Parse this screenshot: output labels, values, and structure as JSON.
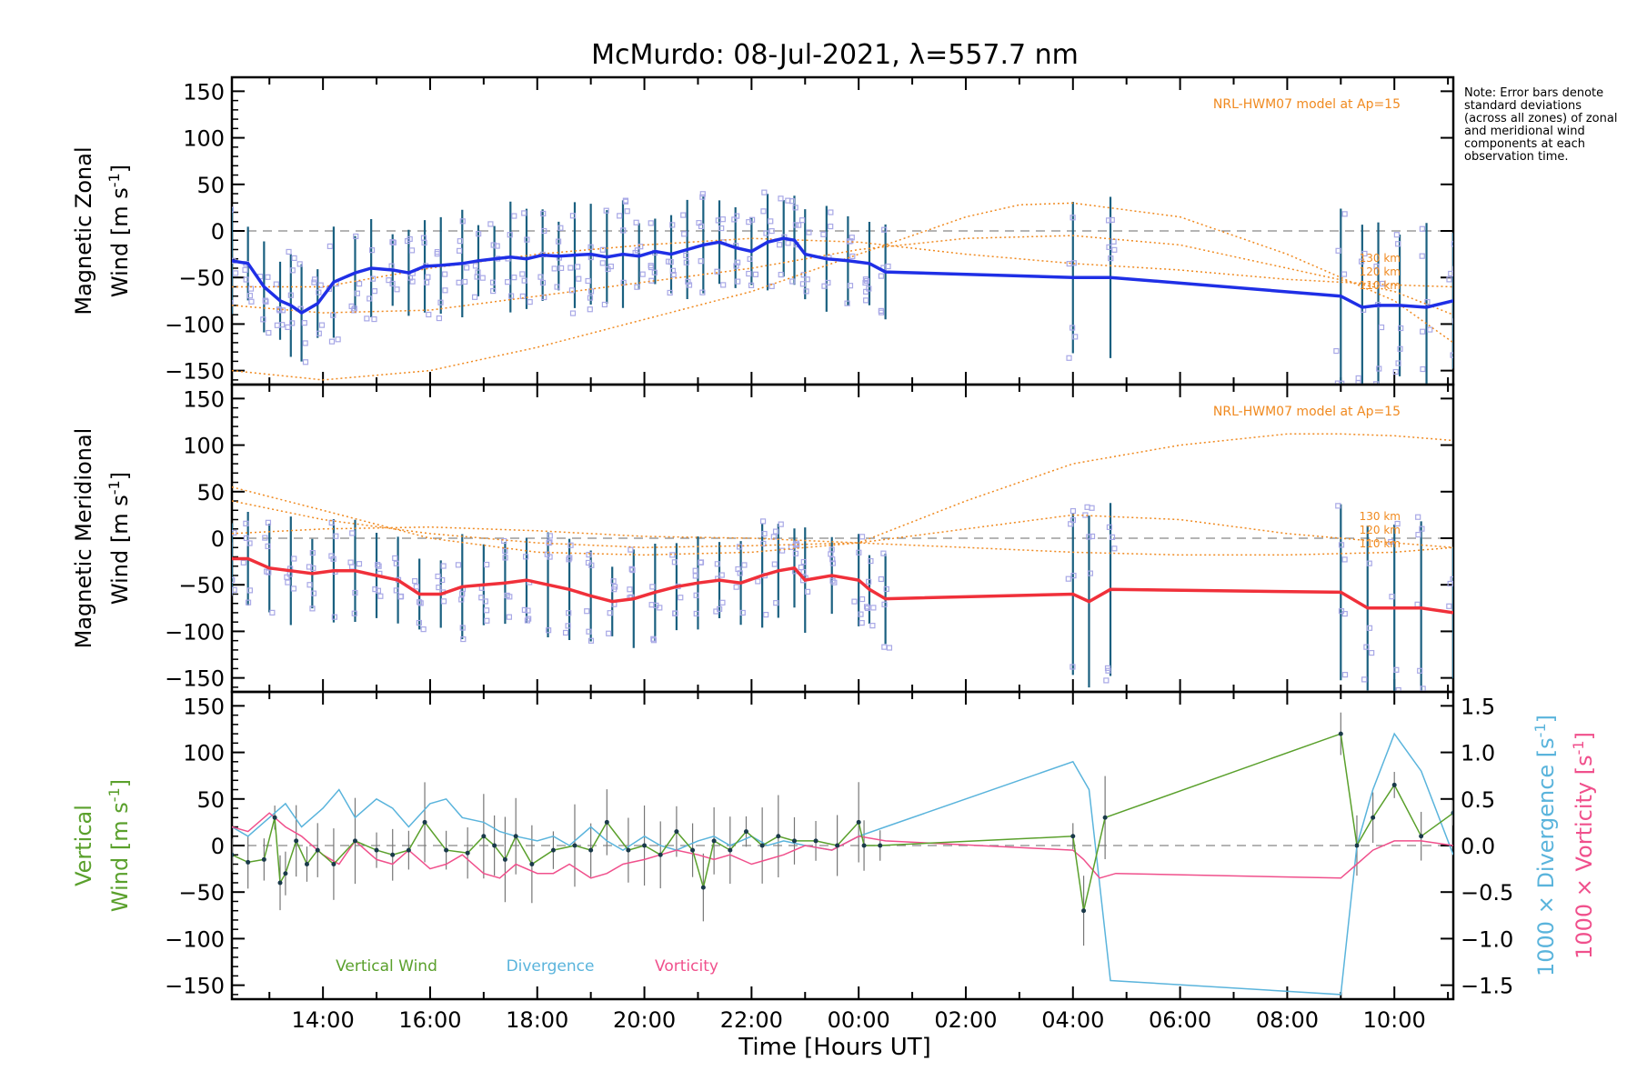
{
  "figure": {
    "title": "McMurdo: 08-Jul-2021, λ=557.7 nm",
    "note": "Note: Error bars denote standard deviations (across all zones) of zonal and meridional wind components at each observation time.",
    "xlabel": "Time [Hours UT]",
    "x_tick_labels": [
      "14:00",
      "16:00",
      "18:00",
      "20:00",
      "22:00",
      "00:00",
      "02:00",
      "04:00",
      "06:00",
      "08:00",
      "10:00"
    ],
    "colors": {
      "zonal": "#1f2fe6",
      "meridional": "#f0303a",
      "vertical": "#5aa02c",
      "divergence": "#5ab4dc",
      "vorticity": "#f0508c",
      "model": "#f08a20",
      "zones": "#a8a8e6",
      "errbar": "#1a6080"
    }
  },
  "chart_data": [
    {
      "type": "line",
      "panel": "zonal",
      "ylabel_line1": "Magnetic Zonal",
      "ylabel_line2": "Wind [m s",
      "ylabel_sup": "-1",
      "ylabel_end": "]",
      "xlim_hours": [
        12.3,
        35.1
      ],
      "ylim": [
        -165,
        165
      ],
      "y_ticks": [
        150,
        100,
        50,
        0,
        -50,
        -100,
        -150
      ],
      "y_tick_labels": [
        "150",
        "100",
        "50",
        "0",
        "−50",
        "−100",
        "−150"
      ],
      "model_label": "NRL-HWM07 model at Ap=15",
      "model_alt_labels": [
        "130 km",
        "120 km",
        "110 km"
      ],
      "series": [
        {
          "name": "Zonal wind",
          "x": [
            12.3,
            12.6,
            12.9,
            13.2,
            13.4,
            13.6,
            13.9,
            14.2,
            14.6,
            14.9,
            15.3,
            15.6,
            15.9,
            16.2,
            16.6,
            16.9,
            17.2,
            17.5,
            17.8,
            18.1,
            18.4,
            18.7,
            19.0,
            19.3,
            19.6,
            19.9,
            20.2,
            20.5,
            20.8,
            21.1,
            21.4,
            21.7,
            22.0,
            22.3,
            22.6,
            22.8,
            23.0,
            23.4,
            23.8,
            24.2,
            24.5,
            28.0,
            28.7,
            33.0,
            33.4,
            33.7,
            34.1,
            34.6,
            35.1
          ],
          "y": [
            -32,
            -35,
            -60,
            -75,
            -80,
            -88,
            -78,
            -55,
            -45,
            -40,
            -42,
            -45,
            -38,
            -37,
            -35,
            -32,
            -30,
            -28,
            -30,
            -26,
            -27,
            -26,
            -25,
            -28,
            -25,
            -27,
            -22,
            -25,
            -20,
            -15,
            -12,
            -18,
            -22,
            -12,
            -8,
            -10,
            -25,
            -30,
            -32,
            -35,
            -44,
            -50,
            -50,
            -70,
            -82,
            -80,
            -80,
            -82,
            -75
          ]
        },
        {
          "name": "Model 130 km",
          "x": [
            12.3,
            14.0,
            16.0,
            18.0,
            20.0,
            22.0,
            24.0,
            26.0,
            27.0,
            28.0,
            30.0,
            32.0,
            34.0,
            35.1
          ],
          "y": [
            -150,
            -160,
            -150,
            -125,
            -95,
            -65,
            -25,
            15,
            28,
            30,
            15,
            -25,
            -75,
            -120
          ]
        },
        {
          "name": "Model 120 km",
          "x": [
            12.3,
            14.0,
            16.0,
            18.0,
            20.0,
            22.0,
            24.0,
            26.0,
            28.0,
            30.0,
            32.0,
            34.0,
            35.1
          ],
          "y": [
            -80,
            -88,
            -85,
            -70,
            -55,
            -40,
            -20,
            -8,
            -5,
            -15,
            -40,
            -65,
            -90
          ]
        },
        {
          "name": "Model 110 km",
          "x": [
            12.3,
            14.0,
            16.0,
            18.0,
            20.0,
            22.0,
            24.0,
            26.0,
            28.0,
            30.0,
            32.0,
            34.0,
            35.1
          ],
          "y": [
            -60,
            -60,
            -40,
            -25,
            -15,
            -8,
            -12,
            -25,
            -35,
            -42,
            -52,
            -58,
            -60
          ]
        }
      ]
    },
    {
      "type": "line",
      "panel": "meridional",
      "ylabel_line1": "Magnetic Meridional",
      "ylabel_line2": "Wind [m s",
      "ylabel_sup": "-1",
      "ylabel_end": "]",
      "xlim_hours": [
        12.3,
        35.1
      ],
      "ylim": [
        -165,
        165
      ],
      "y_ticks": [
        150,
        100,
        50,
        0,
        -50,
        -100,
        -150
      ],
      "y_tick_labels": [
        "150",
        "100",
        "50",
        "0",
        "−50",
        "−100",
        "−150"
      ],
      "model_label": "NRL-HWM07 model at Ap=15",
      "model_alt_labels": [
        "130 km",
        "120 km",
        "110 km"
      ],
      "series": [
        {
          "name": "Meridional wind",
          "x": [
            12.3,
            12.6,
            13.0,
            13.4,
            13.8,
            14.2,
            14.6,
            15.0,
            15.4,
            15.8,
            16.2,
            16.6,
            17.0,
            17.4,
            17.8,
            18.2,
            18.6,
            19.0,
            19.4,
            19.8,
            20.2,
            20.6,
            21.0,
            21.4,
            21.8,
            22.2,
            22.5,
            22.8,
            23.0,
            23.5,
            24.0,
            24.2,
            24.5,
            28.0,
            28.3,
            28.7,
            33.0,
            33.5,
            34.0,
            34.5,
            35.1
          ],
          "y": [
            -22,
            -22,
            -32,
            -35,
            -38,
            -35,
            -35,
            -40,
            -45,
            -60,
            -60,
            -52,
            -50,
            -48,
            -45,
            -50,
            -55,
            -62,
            -68,
            -65,
            -58,
            -52,
            -48,
            -45,
            -48,
            -40,
            -35,
            -32,
            -45,
            -40,
            -45,
            -55,
            -65,
            -60,
            -68,
            -55,
            -58,
            -75,
            -75,
            -75,
            -80
          ]
        },
        {
          "name": "Model 130 km",
          "x": [
            12.3,
            14.0,
            16.0,
            18.0,
            20.0,
            22.0,
            24.0,
            26.0,
            28.0,
            30.0,
            32.0,
            33.0,
            34.0,
            35.1
          ],
          "y": [
            55,
            30,
            0,
            -15,
            -18,
            -15,
            -5,
            40,
            80,
            100,
            112,
            112,
            110,
            105
          ]
        },
        {
          "name": "Model 120 km",
          "x": [
            12.3,
            14.0,
            16.0,
            18.0,
            20.0,
            22.0,
            24.0,
            26.0,
            28.0,
            30.0,
            32.0,
            34.0,
            35.1
          ],
          "y": [
            40,
            20,
            5,
            -5,
            -10,
            -8,
            -5,
            10,
            25,
            20,
            5,
            -5,
            -10
          ]
        },
        {
          "name": "Model 110 km",
          "x": [
            12.3,
            14.0,
            16.0,
            18.0,
            20.0,
            22.0,
            24.0,
            26.0,
            28.0,
            30.0,
            32.0,
            34.0,
            35.1
          ],
          "y": [
            5,
            10,
            12,
            8,
            2,
            0,
            -5,
            -10,
            -15,
            -18,
            -18,
            -15,
            -10
          ]
        }
      ]
    },
    {
      "type": "line",
      "panel": "vertical",
      "ylabel_line1": "Vertical",
      "ylabel_line2": "Wind [m s",
      "ylabel_sup": "-1",
      "ylabel_end": "]",
      "right_ylabel_a": "1000 × Divergence [s",
      "right_ylabel_b": "1000 × Vorticity [s",
      "right_ylabel_sup": "-1",
      "right_ylabel_end": "]",
      "xlim_hours": [
        12.3,
        35.1
      ],
      "ylim": [
        -165,
        165
      ],
      "y_ticks": [
        150,
        100,
        50,
        0,
        -50,
        -100,
        -150
      ],
      "y_tick_labels": [
        "150",
        "100",
        "50",
        "0",
        "−50",
        "−100",
        "−150"
      ],
      "ylim_right": [
        -1.65,
        1.65
      ],
      "y2_ticks": [
        1.5,
        1.0,
        0.5,
        0.0,
        -0.5,
        -1.0,
        -1.5
      ],
      "y2_tick_labels": [
        "1.5",
        "1.0",
        "0.5",
        "0.0",
        "−0.5",
        "−1.0",
        "−1.5"
      ],
      "legend": [
        "Vertical Wind",
        "Divergence",
        "Vorticity"
      ],
      "series": [
        {
          "name": "Vertical Wind",
          "x": [
            12.3,
            12.6,
            12.9,
            13.1,
            13.2,
            13.3,
            13.5,
            13.7,
            13.9,
            14.2,
            14.6,
            15.0,
            15.3,
            15.6,
            15.9,
            16.3,
            16.7,
            17.0,
            17.2,
            17.4,
            17.6,
            17.9,
            18.3,
            18.7,
            19.0,
            19.3,
            19.7,
            20.0,
            20.3,
            20.6,
            20.9,
            21.1,
            21.3,
            21.6,
            21.9,
            22.2,
            22.5,
            22.8,
            23.2,
            23.6,
            24.0,
            24.1,
            24.4,
            28.0,
            28.2,
            28.6,
            33.0,
            33.3,
            33.6,
            34.0,
            34.5,
            35.1
          ],
          "y": [
            -10,
            -18,
            -15,
            30,
            -40,
            -30,
            5,
            -20,
            -5,
            -20,
            5,
            -5,
            -10,
            -5,
            25,
            -5,
            -8,
            10,
            0,
            -15,
            10,
            -20,
            -5,
            0,
            -5,
            25,
            -5,
            0,
            -10,
            15,
            -5,
            -45,
            5,
            -5,
            15,
            0,
            10,
            5,
            5,
            0,
            25,
            0,
            0,
            10,
            -70,
            30,
            120,
            0,
            30,
            65,
            10,
            35
          ]
        },
        {
          "name": "Divergence",
          "x": [
            12.3,
            12.6,
            13.0,
            13.3,
            13.6,
            14.0,
            14.3,
            14.6,
            15.0,
            15.3,
            15.6,
            16.0,
            16.3,
            16.6,
            17.0,
            17.3,
            17.6,
            18.0,
            18.3,
            18.6,
            19.0,
            19.3,
            19.6,
            20.0,
            20.3,
            20.6,
            21.0,
            21.3,
            21.6,
            22.0,
            22.3,
            22.6,
            23.0,
            23.5,
            24.0,
            24.5,
            28.0,
            28.3,
            28.7,
            33.0,
            33.3,
            33.6,
            34.0,
            34.5,
            35.1
          ],
          "y": [
            0.2,
            0.1,
            0.3,
            0.45,
            0.2,
            0.4,
            0.6,
            0.3,
            0.5,
            0.4,
            0.2,
            0.45,
            0.5,
            0.3,
            0.25,
            0.15,
            0.1,
            0.05,
            0.1,
            0.0,
            0.2,
            0.05,
            -0.05,
            0.1,
            0.0,
            -0.05,
            0.05,
            0.1,
            0.0,
            0.1,
            0.0,
            0.05,
            0.0,
            -0.05,
            0.1,
            0.2,
            0.9,
            0.6,
            -1.45,
            -1.6,
            0.0,
            0.6,
            1.2,
            0.8,
            -0.1
          ]
        },
        {
          "name": "Vorticity",
          "x": [
            12.3,
            12.6,
            13.0,
            13.3,
            13.6,
            14.0,
            14.3,
            14.6,
            15.0,
            15.3,
            15.6,
            16.0,
            16.3,
            16.6,
            17.0,
            17.3,
            17.6,
            18.0,
            18.3,
            18.6,
            19.0,
            19.3,
            19.6,
            20.0,
            20.3,
            20.6,
            21.0,
            21.3,
            21.6,
            22.0,
            22.3,
            22.6,
            23.0,
            23.5,
            24.0,
            24.5,
            28.0,
            28.2,
            28.5,
            28.8,
            33.0,
            33.3,
            33.6,
            34.0,
            34.5,
            35.1
          ],
          "y": [
            0.2,
            0.15,
            0.35,
            0.2,
            0.1,
            -0.1,
            -0.2,
            0.05,
            -0.15,
            -0.2,
            -0.05,
            -0.25,
            -0.2,
            -0.1,
            -0.3,
            -0.35,
            -0.2,
            -0.3,
            -0.3,
            -0.2,
            -0.35,
            -0.3,
            -0.2,
            -0.15,
            -0.1,
            -0.05,
            -0.1,
            -0.15,
            -0.1,
            -0.2,
            -0.15,
            -0.1,
            0.0,
            -0.05,
            0.1,
            0.05,
            -0.05,
            -0.15,
            -0.35,
            -0.3,
            -0.35,
            -0.2,
            -0.05,
            0.05,
            0.05,
            0.0
          ]
        }
      ]
    }
  ]
}
